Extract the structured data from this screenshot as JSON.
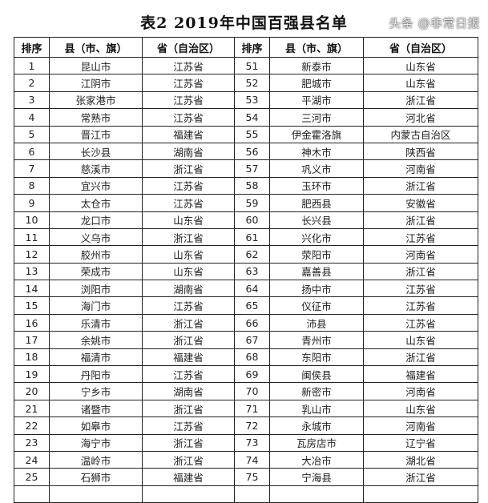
{
  "title": "表2 2019年中国百强县名单",
  "headers": [
    "排序",
    "县（市、旗）",
    "省（自治区）",
    "排序",
    "县（市、旗）",
    "省（自治区）"
  ],
  "rows": [
    [
      "1",
      "昆山市",
      "江苏省",
      "51",
      "新泰市",
      "山东省"
    ],
    [
      "2",
      "江阴市",
      "江苏省",
      "52",
      "肥城市",
      "山东省"
    ],
    [
      "3",
      "张家港市",
      "江苏省",
      "53",
      "平湖市",
      "浙江省"
    ],
    [
      "4",
      "常熟市",
      "江苏省",
      "54",
      "三河市",
      "河北省"
    ],
    [
      "5",
      "晋江市",
      "福建省",
      "55",
      "伊金霍洛旗",
      "内蒙古自治区"
    ],
    [
      "6",
      "长沙县",
      "湖南省",
      "56",
      "神木市",
      "陕西省"
    ],
    [
      "7",
      "慈溪市",
      "浙江省",
      "57",
      "巩义市",
      "河南省"
    ],
    [
      "8",
      "宜兴市",
      "江苏省",
      "58",
      "玉环市",
      "浙江省"
    ],
    [
      "9",
      "太仓市",
      "江苏省",
      "59",
      "肥西县",
      "安徽省"
    ],
    [
      "10",
      "龙口市",
      "山东省",
      "60",
      "长兴县",
      "浙江省"
    ],
    [
      "11",
      "义乌市",
      "浙江省",
      "61",
      "兴化市",
      "江苏省"
    ],
    [
      "12",
      "胶州市",
      "山东省",
      "62",
      "荥阳市",
      "河南省"
    ],
    [
      "13",
      "荣成市",
      "山东省",
      "63",
      "嘉善县",
      "浙江省"
    ],
    [
      "14",
      "浏阳市",
      "湖南省",
      "64",
      "扬中市",
      "江苏省"
    ],
    [
      "15",
      "海门市",
      "江苏省",
      "65",
      "仪征市",
      "江苏省"
    ],
    [
      "16",
      "乐清市",
      "浙江省",
      "66",
      "沛县",
      "江苏省"
    ],
    [
      "17",
      "余姚市",
      "浙江省",
      "67",
      "青州市",
      "山东省"
    ],
    [
      "18",
      "福清市",
      "福建省",
      "68",
      "东阳市",
      "浙江省"
    ],
    [
      "19",
      "丹阳市",
      "江苏省",
      "69",
      "闽侯县",
      "福建省"
    ],
    [
      "20",
      "宁乡市",
      "湖南省",
      "70",
      "新密市",
      "河南省"
    ],
    [
      "21",
      "诸暨市",
      "浙江省",
      "71",
      "乳山市",
      "山东省"
    ],
    [
      "22",
      "如皋市",
      "江苏省",
      "72",
      "永城市",
      "河南省"
    ],
    [
      "23",
      "海宁市",
      "浙江省",
      "73",
      "瓦房店市",
      "辽宁省"
    ],
    [
      "24",
      "温岭市",
      "浙江省",
      "74",
      "大冶市",
      "湖北省"
    ],
    [
      "25",
      "石狮市",
      "福建省",
      "75",
      "宁海县",
      "浙江省"
    ]
  ],
  "watermark": "头条 @非常日报"
}
